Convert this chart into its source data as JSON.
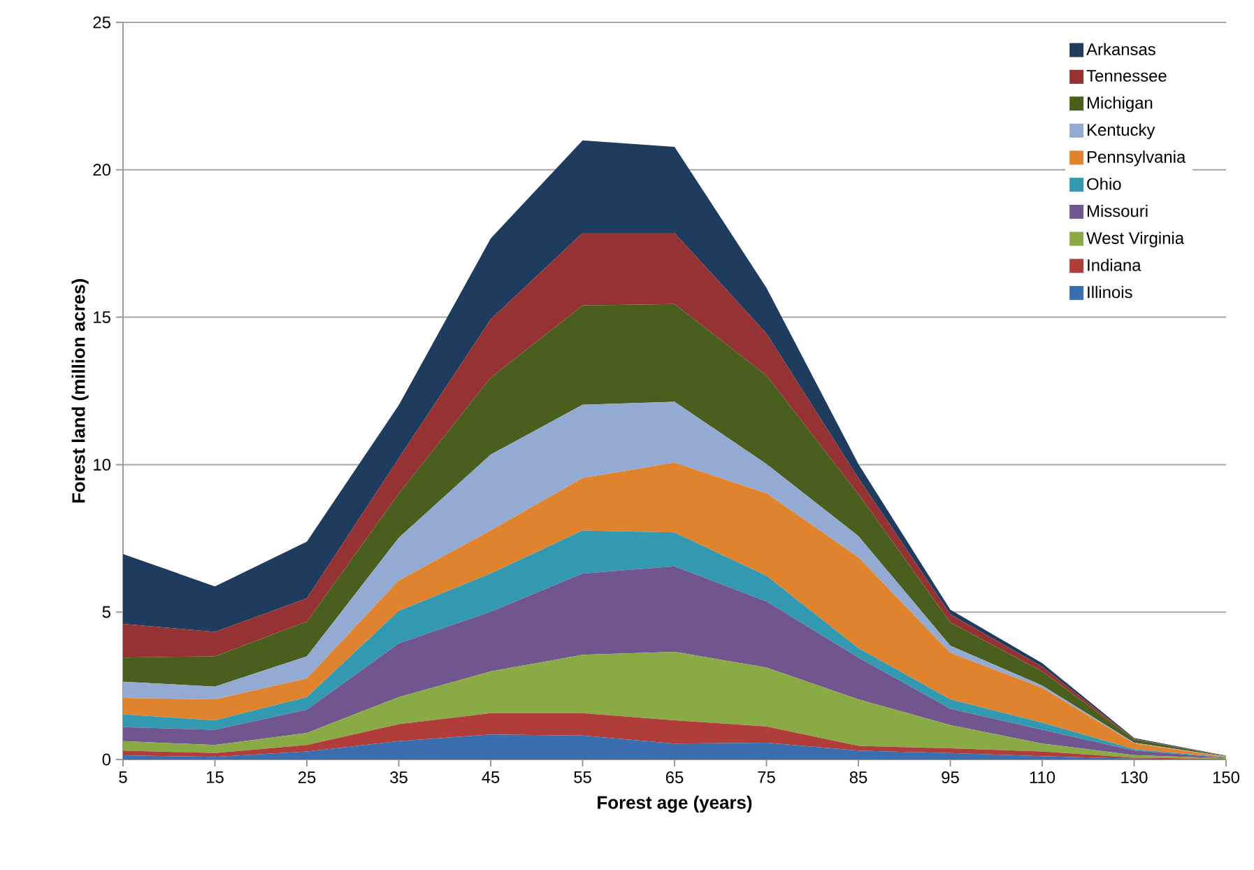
{
  "chart_data": {
    "type": "area",
    "stacked": true,
    "xlabel": "Forest age (years)",
    "ylabel": "Forest land (million acres)",
    "categories": [
      "5",
      "15",
      "25",
      "35",
      "45",
      "55",
      "65",
      "75",
      "85",
      "95",
      "110",
      "130",
      "150"
    ],
    "ylim": [
      0,
      25
    ],
    "yticks": [
      0,
      5,
      10,
      15,
      20,
      25
    ],
    "grid": "y",
    "legend": "top right",
    "series": [
      {
        "name": "Illinois",
        "color": "#3a6eaf",
        "values": [
          0.14,
          0.09,
          0.27,
          0.62,
          0.85,
          0.81,
          0.54,
          0.57,
          0.3,
          0.22,
          0.11,
          0.03,
          0.01
        ]
      },
      {
        "name": "Indiana",
        "color": "#b03d3a",
        "values": [
          0.16,
          0.13,
          0.22,
          0.58,
          0.72,
          0.76,
          0.79,
          0.55,
          0.16,
          0.16,
          0.16,
          0.03,
          0.01
        ]
      },
      {
        "name": "West Virginia",
        "color": "#8aaa46",
        "values": [
          0.32,
          0.27,
          0.41,
          0.92,
          1.42,
          1.98,
          2.32,
          2.0,
          1.58,
          0.79,
          0.27,
          0.09,
          0.02
        ]
      },
      {
        "name": "Missouri",
        "color": "#70558f",
        "values": [
          0.48,
          0.52,
          0.79,
          1.82,
          2.02,
          2.76,
          2.9,
          2.24,
          1.42,
          0.55,
          0.47,
          0.15,
          0.02
        ]
      },
      {
        "name": "Ohio",
        "color": "#3399b0",
        "values": [
          0.43,
          0.32,
          0.43,
          1.1,
          1.3,
          1.46,
          1.15,
          0.87,
          0.32,
          0.32,
          0.24,
          0.05,
          0.01
        ]
      },
      {
        "name": "Pennsylvania",
        "color": "#e0832f",
        "values": [
          0.56,
          0.71,
          0.63,
          1.03,
          1.46,
          1.78,
          2.37,
          2.8,
          3.08,
          1.58,
          1.18,
          0.2,
          0.02
        ]
      },
      {
        "name": "Kentucky",
        "color": "#93aad3",
        "values": [
          0.55,
          0.43,
          0.75,
          1.45,
          2.57,
          2.48,
          2.06,
          0.99,
          0.72,
          0.24,
          0.08,
          0.02,
          0.01
        ]
      },
      {
        "name": "Michigan",
        "color": "#4a5f1e",
        "values": [
          0.82,
          1.03,
          1.18,
          1.5,
          2.61,
          3.37,
          3.32,
          3.01,
          1.42,
          0.79,
          0.48,
          0.11,
          0.01
        ]
      },
      {
        "name": "Tennessee",
        "color": "#953233",
        "values": [
          1.14,
          0.83,
          0.79,
          1.2,
          1.98,
          2.46,
          2.41,
          1.42,
          0.55,
          0.28,
          0.16,
          0.02,
          0.01
        ]
      },
      {
        "name": "Arkansas",
        "color": "#1f3b5e",
        "values": [
          2.37,
          1.54,
          1.92,
          1.8,
          2.74,
          3.14,
          2.92,
          1.55,
          0.47,
          0.15,
          0.12,
          0.03,
          0.01
        ]
      }
    ]
  }
}
